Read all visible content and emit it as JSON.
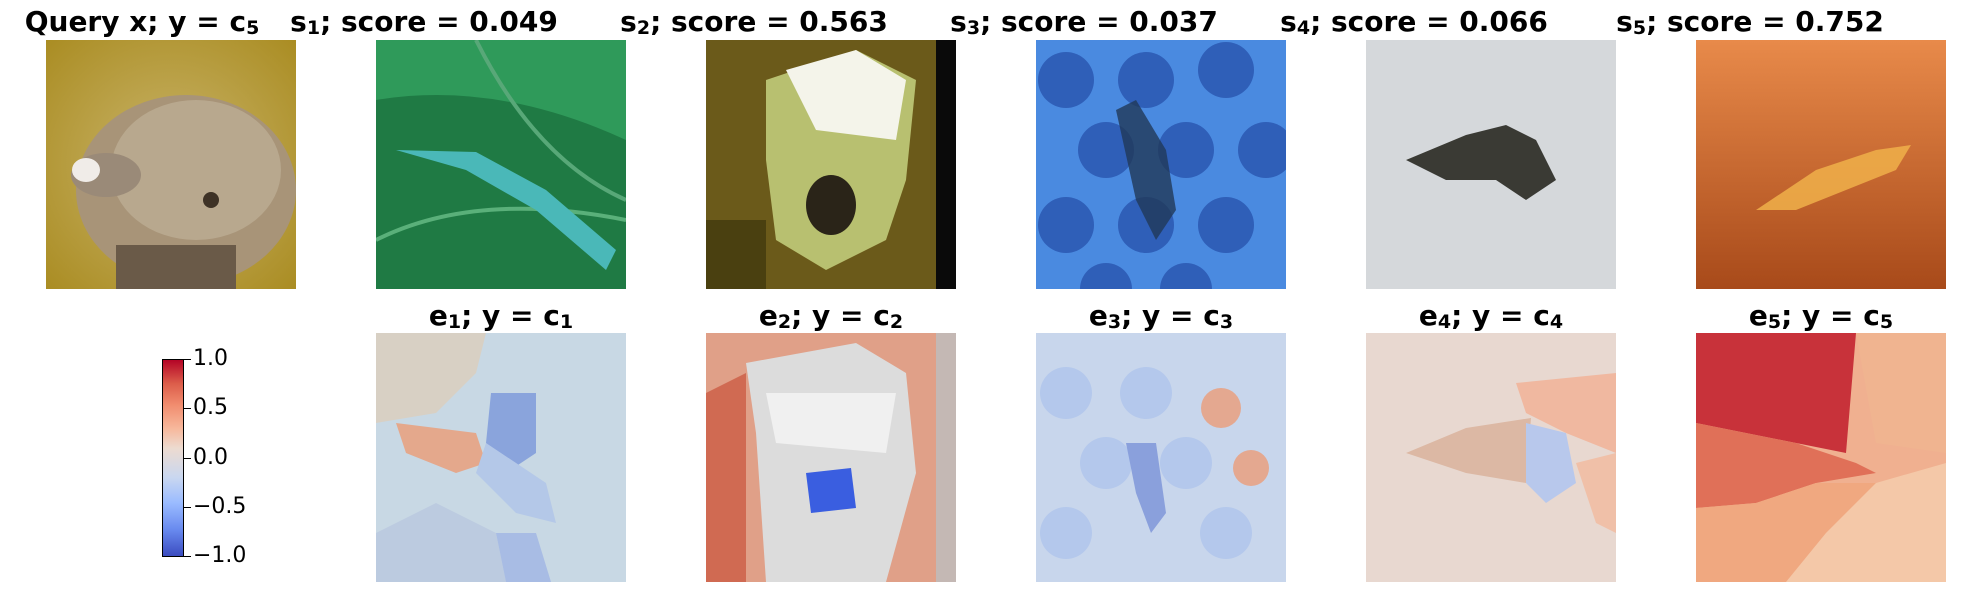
{
  "titles": {
    "query": "Query x; y = c",
    "query_sub": "5",
    "s1": "score = 0.049",
    "s2": "score = 0.563",
    "s3": "score = 0.037",
    "s4": "score = 0.066",
    "s5": "score = 0.752",
    "s_prefix": "s",
    "e_prefix": "e",
    "y_eq_c": "; y = c"
  },
  "scores": [
    0.049,
    0.563,
    0.037,
    0.066,
    0.752
  ],
  "subscripts": [
    "1",
    "2",
    "3",
    "4",
    "5"
  ],
  "colorbar": {
    "colormap": "coolwarm",
    "range": [
      -1.0,
      1.0
    ],
    "ticks": [
      "1.0",
      "0.5",
      "0.0",
      "−0.5",
      "−1.0"
    ]
  },
  "colors": {
    "query_bg": "#b89a2c",
    "s1_bg": "#1f7a44",
    "s2_bg": "#6b5a1a",
    "s3_bg": "#2f6fd6",
    "s4_bg": "#c9ccd0",
    "s5_bg": "#d9743a",
    "pos_strong": "#c8323a",
    "neg_strong": "#5a78dc"
  }
}
